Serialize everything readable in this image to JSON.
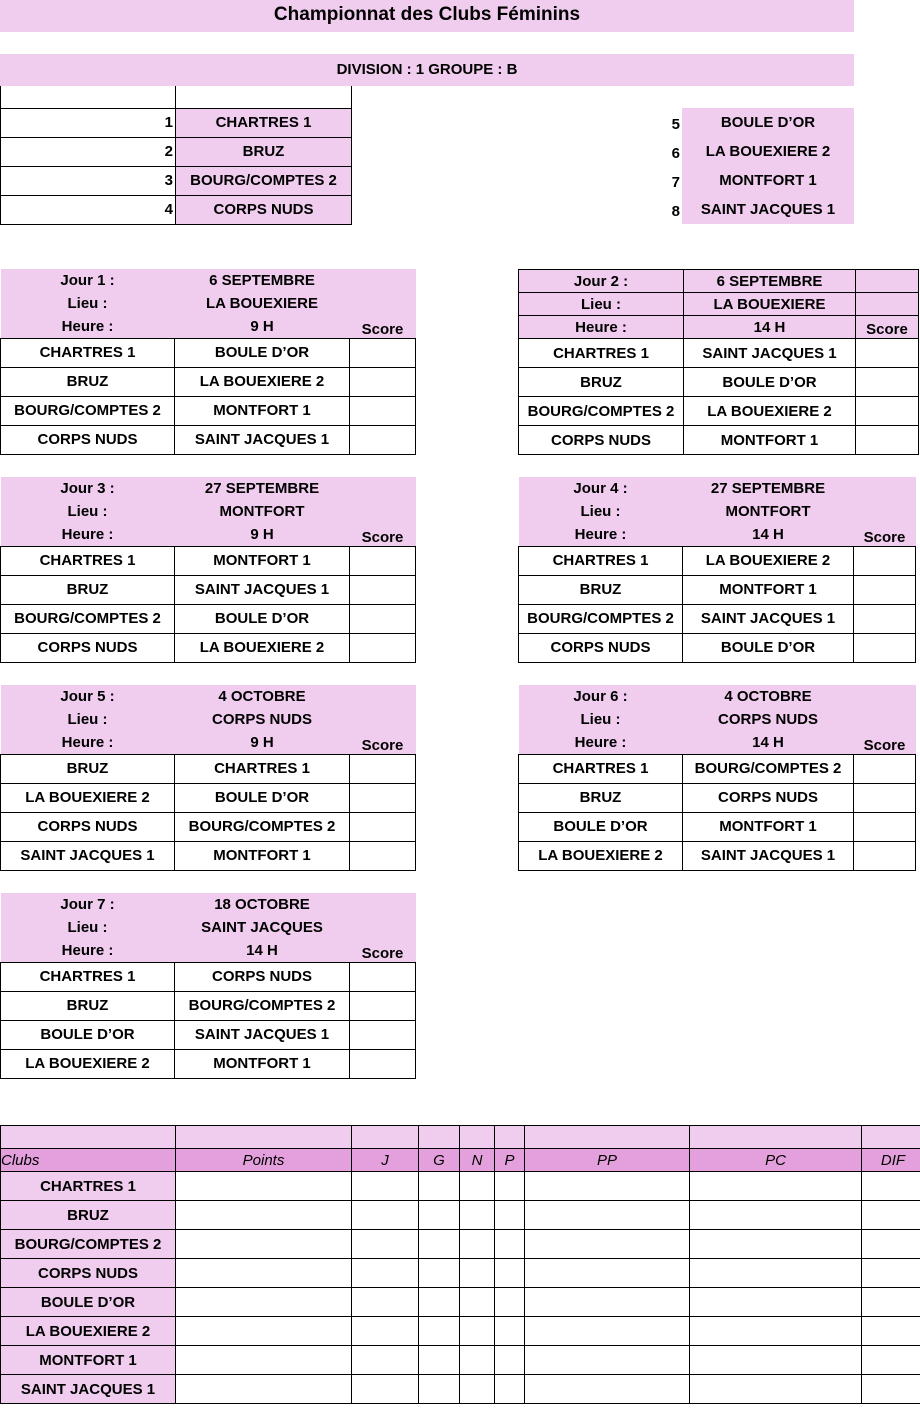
{
  "title": "Championnat des Clubs Féminins",
  "division": "DIVISION : 1 GROUPE : B",
  "teams": [
    {
      "n": "1",
      "name": "CHARTRES 1"
    },
    {
      "n": "2",
      "name": "BRUZ"
    },
    {
      "n": "3",
      "name": "BOURG/COMPTES 2"
    },
    {
      "n": "4",
      "name": "CORPS NUDS"
    },
    {
      "n": "5",
      "name": "BOULE D’OR"
    },
    {
      "n": "6",
      "name": "LA BOUEXIERE 2"
    },
    {
      "n": "7",
      "name": "MONTFORT 1"
    },
    {
      "n": "8",
      "name": "SAINT JACQUES 1"
    }
  ],
  "labels": {
    "lieu": "Lieu :",
    "heure": "Heure :",
    "score": "Score"
  },
  "days": [
    {
      "jour": "Jour 1 :",
      "date": "6 SEPTEMBRE",
      "lieu": "LA BOUEXIERE",
      "heure": "9 H",
      "matches": [
        [
          "CHARTRES 1",
          "BOULE D’OR"
        ],
        [
          "BRUZ",
          "LA BOUEXIERE 2"
        ],
        [
          "BOURG/COMPTES 2",
          "MONTFORT 1"
        ],
        [
          "CORPS NUDS",
          "SAINT JACQUES 1"
        ]
      ]
    },
    {
      "jour": "Jour 2 :",
      "date": "6 SEPTEMBRE",
      "lieu": "LA BOUEXIERE",
      "heure": "14 H",
      "matches": [
        [
          "CHARTRES 1",
          "SAINT JACQUES 1"
        ],
        [
          "BRUZ",
          "BOULE D’OR"
        ],
        [
          "BOURG/COMPTES 2",
          "LA BOUEXIERE 2"
        ],
        [
          "CORPS NUDS",
          "MONTFORT 1"
        ]
      ]
    },
    {
      "jour": "Jour 3 :",
      "date": "27 SEPTEMBRE",
      "lieu": "MONTFORT",
      "heure": "9 H",
      "matches": [
        [
          "CHARTRES 1",
          "MONTFORT 1"
        ],
        [
          "BRUZ",
          "SAINT JACQUES 1"
        ],
        [
          "BOURG/COMPTES 2",
          "BOULE D’OR"
        ],
        [
          "CORPS NUDS",
          "LA BOUEXIERE 2"
        ]
      ]
    },
    {
      "jour": "Jour 4 :",
      "date": "27 SEPTEMBRE",
      "lieu": "MONTFORT",
      "heure": "14 H",
      "matches": [
        [
          "CHARTRES 1",
          "LA BOUEXIERE 2"
        ],
        [
          "BRUZ",
          "MONTFORT 1"
        ],
        [
          "BOURG/COMPTES 2",
          "SAINT JACQUES 1"
        ],
        [
          "CORPS NUDS",
          "BOULE D’OR"
        ]
      ]
    },
    {
      "jour": "Jour 5 :",
      "date": "4 OCTOBRE",
      "lieu": "CORPS NUDS",
      "heure": "9 H",
      "matches": [
        [
          "BRUZ",
          "CHARTRES 1"
        ],
        [
          "LA BOUEXIERE 2",
          "BOULE D’OR"
        ],
        [
          "CORPS NUDS",
          "BOURG/COMPTES 2"
        ],
        [
          "SAINT JACQUES 1",
          "MONTFORT 1"
        ]
      ]
    },
    {
      "jour": "Jour 6 :",
      "date": "4 OCTOBRE",
      "lieu": "CORPS NUDS",
      "heure": "14 H",
      "matches": [
        [
          "CHARTRES 1",
          "BOURG/COMPTES 2"
        ],
        [
          "BRUZ",
          "CORPS NUDS"
        ],
        [
          "BOULE D’OR",
          "MONTFORT 1"
        ],
        [
          "LA BOUEXIERE 2",
          "SAINT JACQUES 1"
        ]
      ]
    },
    {
      "jour": "Jour 7 :",
      "date": "18 OCTOBRE",
      "lieu": "SAINT JACQUES",
      "heure": "14 H",
      "matches": [
        [
          "CHARTRES 1",
          "CORPS NUDS"
        ],
        [
          "BRUZ",
          "BOURG/COMPTES 2"
        ],
        [
          "BOULE D’OR",
          "SAINT JACQUES 1"
        ],
        [
          "LA BOUEXIERE 2",
          "MONTFORT 1"
        ]
      ]
    }
  ],
  "standings": {
    "headers": [
      "Clubs",
      "Points",
      "J",
      "G",
      "N",
      "P",
      "PP",
      "PC",
      "DIF"
    ],
    "clubs": [
      "CHARTRES 1",
      "BRUZ",
      "BOURG/COMPTES 2",
      "CORPS NUDS",
      "BOULE D’OR",
      "LA BOUEXIERE 2",
      "MONTFORT 1",
      "SAINT JACQUES 1"
    ]
  },
  "colors": {
    "pink": "#f0cdee",
    "header_pink": "#e4a0dc"
  }
}
